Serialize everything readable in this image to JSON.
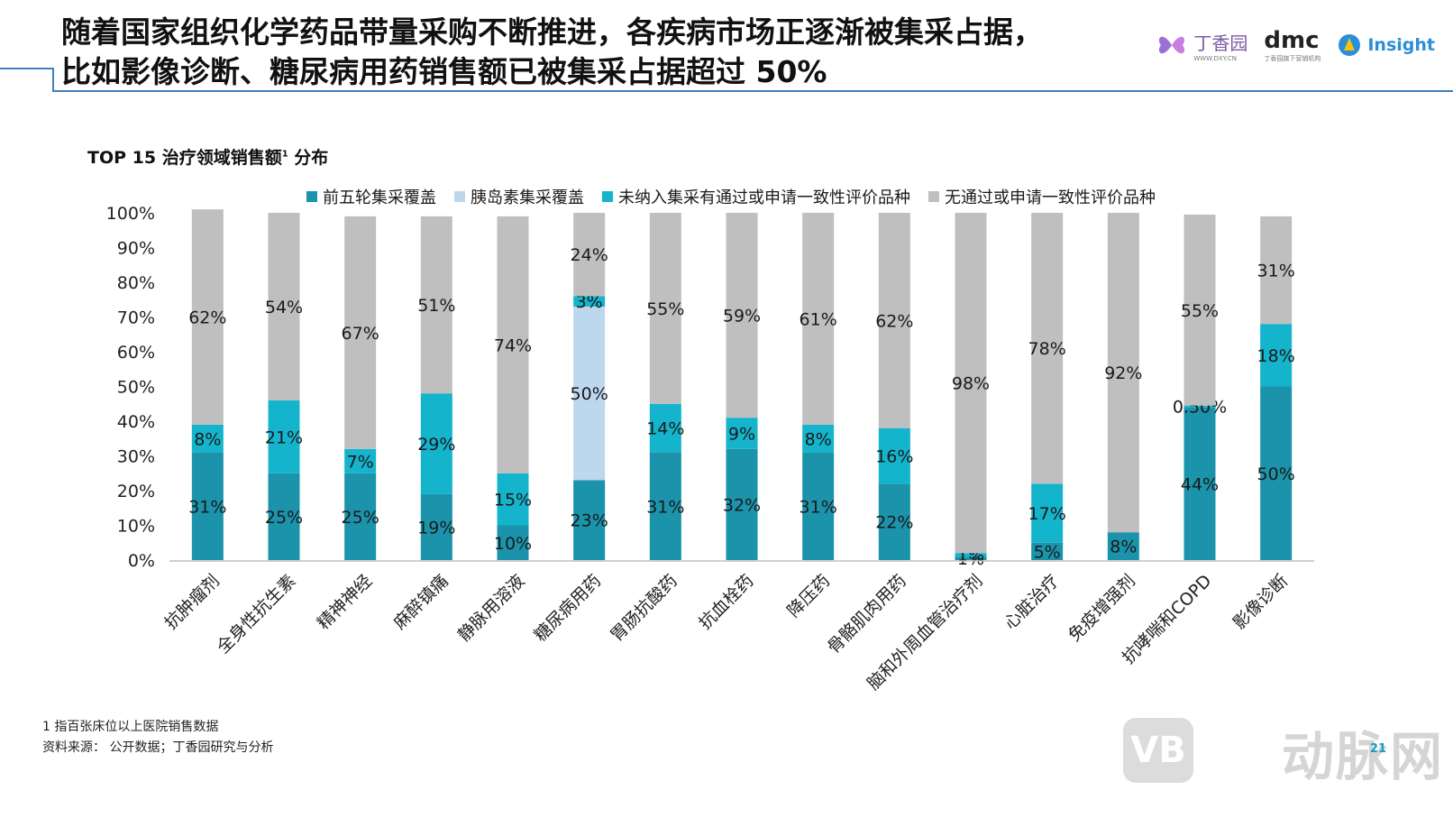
{
  "title": {
    "line1": "随着国家组织化学药品带量采购不断推进，各疾病市场正逐渐被集采占据，",
    "line2": "比如影像诊断、糖尿病用药销售额已被集采占据超过 50%"
  },
  "logos": {
    "dxy": {
      "text": "丁香园",
      "sub": "WWW.DXY.CN"
    },
    "dmc": {
      "text": "dmc",
      "sub": "丁香园旗下营销机构"
    },
    "insight": {
      "text": "Insight"
    }
  },
  "chart_title": {
    "text": "TOP 15 治疗领域销售额",
    "sup": "1",
    "suffix": " 分布"
  },
  "legend": [
    {
      "label": "前五轮集采覆盖",
      "color": "#1a93ab"
    },
    {
      "label": "胰岛素集采覆盖",
      "color": "#bdd7ee"
    },
    {
      "label": "未纳入集采有通过或申请一致性评价品种",
      "color": "#14b4cc"
    },
    {
      "label": "无通过或申请一致性评价品种",
      "color": "#bfbfbf"
    }
  ],
  "chart_data": {
    "type": "bar",
    "stacked": true,
    "ylim": [
      0,
      100
    ],
    "yticks": [
      "0%",
      "10%",
      "20%",
      "30%",
      "40%",
      "50%",
      "60%",
      "70%",
      "80%",
      "90%",
      "100%"
    ],
    "categories": [
      "抗肿瘤剂",
      "全身性抗生素",
      "精神神经",
      "麻醉镇痛",
      "静脉用溶液",
      "糖尿病用药",
      "胃肠抗酸药",
      "抗血栓药",
      "降压药",
      "骨骼肌肉用药",
      "脑和外周血管治疗剂",
      "心脏治疗",
      "免疫增强剂",
      "抗哮喘和COPD",
      "影像诊断"
    ],
    "series": [
      {
        "name": "前五轮集采覆盖",
        "color": "#1a93ab",
        "values": [
          31,
          25,
          25,
          19,
          10,
          23,
          31,
          32,
          31,
          22,
          1,
          5,
          8,
          44,
          50
        ],
        "labels": [
          "31%",
          "25%",
          "25%",
          "19%",
          "10%",
          "23%",
          "31%",
          "32%",
          "31%",
          "22%",
          "1%",
          "5%",
          "8%",
          "44%",
          "50%"
        ]
      },
      {
        "name": "胰岛素集采覆盖",
        "color": "#bdd7ee",
        "values": [
          0,
          0,
          0,
          0,
          0,
          50,
          0,
          0,
          0,
          0,
          0,
          0,
          0,
          0,
          0
        ],
        "labels": [
          "",
          "",
          "",
          "",
          "",
          "50%",
          "",
          "",
          "",
          "",
          "",
          "",
          "",
          "",
          ""
        ]
      },
      {
        "name": "未纳入集采有通过或申请一致性评价品种",
        "color": "#14b4cc",
        "values": [
          8,
          21,
          7,
          29,
          15,
          3,
          14,
          9,
          8,
          16,
          1,
          17,
          0,
          0.5,
          18
        ],
        "labels": [
          "8%",
          "21%",
          "7%",
          "29%",
          "15%",
          "3%",
          "14%",
          "9%",
          "8%",
          "16%",
          "1%",
          "17%",
          "",
          "0.50%",
          "18%"
        ]
      },
      {
        "name": "无通过或申请一致性评价品种",
        "color": "#bfbfbf",
        "values": [
          62,
          54,
          67,
          51,
          74,
          24,
          55,
          59,
          61,
          62,
          98,
          78,
          92,
          55,
          31
        ],
        "labels": [
          "62%",
          "54%",
          "67%",
          "51%",
          "74%",
          "24%",
          "55%",
          "59%",
          "61%",
          "62%",
          "98%",
          "78%",
          "92%",
          "55%",
          "31%"
        ]
      }
    ]
  },
  "footnotes": {
    "note1": "1 指百张床位以上医院销售数据",
    "source": "资料来源： 公开数据；丁香园研究与分析"
  },
  "page_number": "21",
  "watermark": {
    "box": "VB",
    "text": "动脉网"
  }
}
